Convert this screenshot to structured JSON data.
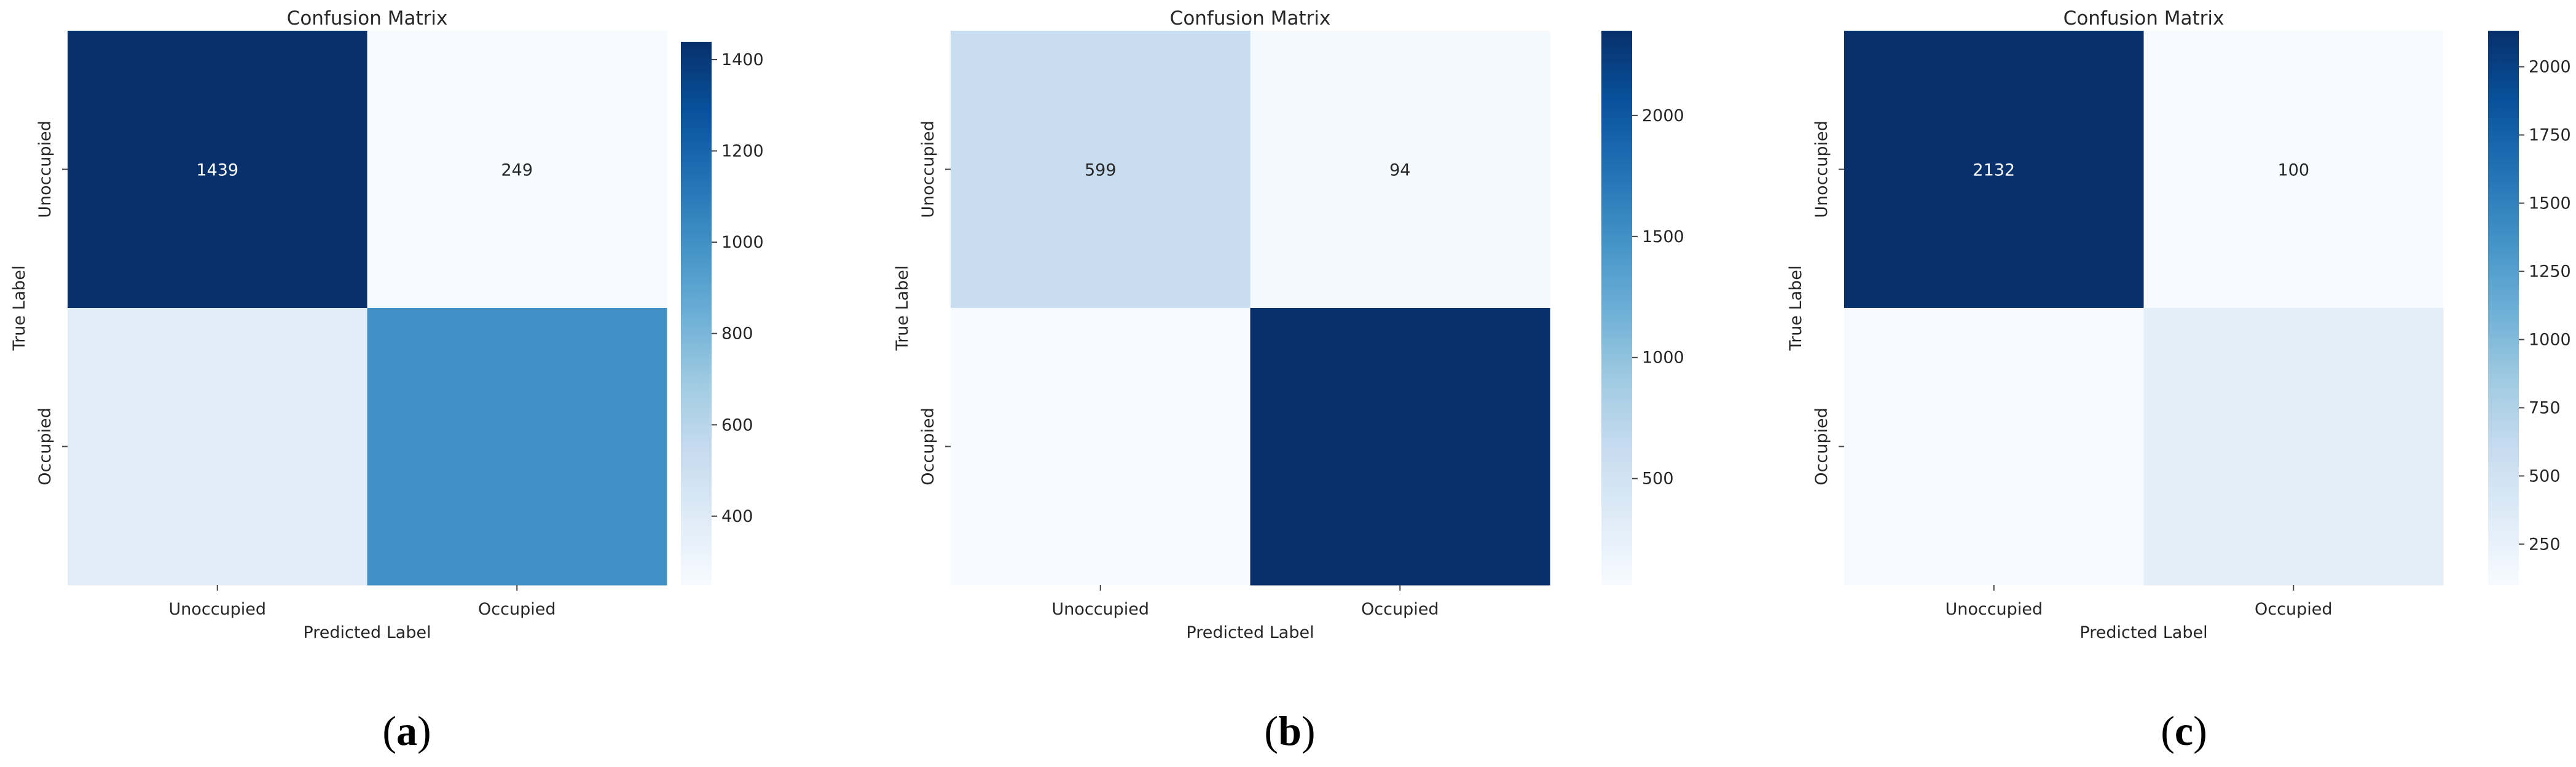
{
  "chart_data": [
    {
      "type": "heatmap",
      "title": "Confusion Matrix",
      "xlabel": "Predicted Label",
      "ylabel": "True Label",
      "x_categories": [
        "Unoccupied",
        "Occupied"
      ],
      "y_categories": [
        "Unoccupied",
        "Occupied"
      ],
      "values": [
        [
          1439,
          249
        ],
        [
          380,
          1000
        ]
      ],
      "cell_labels": [
        [
          "1439",
          "249"
        ],
        [
          "",
          ""
        ]
      ],
      "colorbar": {
        "min": 249,
        "max": 1439,
        "ticks": [
          400,
          600,
          800,
          1000,
          1200,
          1400
        ]
      },
      "colormap": "Blues",
      "caption_letter": "a"
    },
    {
      "type": "heatmap",
      "title": "Confusion Matrix",
      "xlabel": "Predicted Label",
      "ylabel": "True Label",
      "x_categories": [
        "Unoccupied",
        "Occupied"
      ],
      "y_categories": [
        "Unoccupied",
        "Occupied"
      ],
      "values": [
        [
          599,
          94
        ],
        [
          60,
          2350
        ]
      ],
      "cell_labels": [
        [
          "599",
          "94"
        ],
        [
          "",
          ""
        ]
      ],
      "colorbar": {
        "min": 60,
        "max": 2350,
        "ticks": [
          500,
          1000,
          1500,
          2000
        ]
      },
      "colormap": "Blues",
      "caption_letter": "b"
    },
    {
      "type": "heatmap",
      "title": "Confusion Matrix",
      "xlabel": "Predicted Label",
      "ylabel": "True Label",
      "x_categories": [
        "Unoccupied",
        "Occupied"
      ],
      "y_categories": [
        "Unoccupied",
        "Occupied"
      ],
      "values": [
        [
          2132,
          100
        ],
        [
          110,
          310
        ]
      ],
      "cell_labels": [
        [
          "2132",
          "100"
        ],
        [
          "",
          ""
        ]
      ],
      "colorbar": {
        "min": 100,
        "max": 2132,
        "ticks": [
          250,
          500,
          750,
          1000,
          1250,
          1500,
          1750,
          2000
        ]
      },
      "colormap": "Blues",
      "caption_letter": "c"
    }
  ],
  "colors": {
    "blues": [
      "#f7fbff",
      "#deebf7",
      "#c6dbef",
      "#9ecae1",
      "#6baed6",
      "#4292c6",
      "#2171b5",
      "#08519c",
      "#08306b"
    ],
    "text_light": "#ffffff",
    "text_dark": "#262626"
  }
}
